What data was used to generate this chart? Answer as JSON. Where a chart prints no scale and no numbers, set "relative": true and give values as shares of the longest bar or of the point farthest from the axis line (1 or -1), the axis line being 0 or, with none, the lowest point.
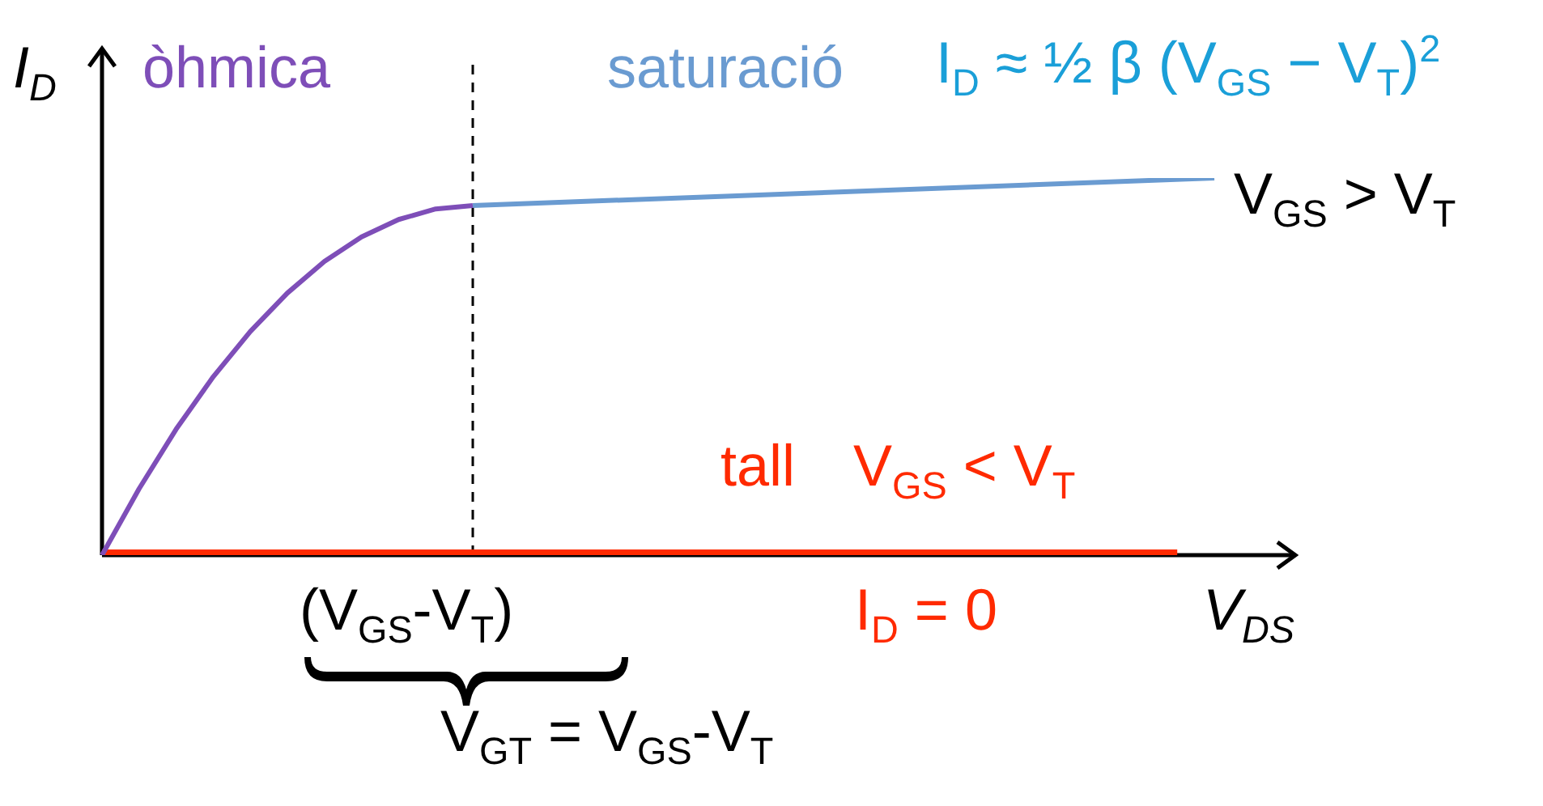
{
  "chart_data": {
    "type": "line",
    "relative": true,
    "xlabel": "V$_{DS}$",
    "ylabel": "I$_{D}$",
    "marker": "none",
    "line_style": "solid",
    "categories": [
      null,
      null,
      null,
      null,
      null,
      null,
      null,
      null,
      null,
      null,
      null,
      null,
      null,
      null,
      null,
      null,
      null,
      null,
      null,
      null,
      null,
      null,
      null,
      null,
      null,
      null,
      null,
      null,
      null,
      null,
      null
    ],
    "series": [
      {
        "name": "òhmica",
        "color": "#7e4eb8",
        "values": [
          0,
          0.176,
          0.334,
          0.473,
          0.593,
          0.695,
          0.779,
          0.844,
          0.89,
          0.918,
          0.927,
          null,
          null,
          null,
          null,
          null,
          null,
          null,
          null,
          null,
          null,
          null,
          null,
          null,
          null,
          null,
          null,
          null,
          null,
          null,
          null
        ]
      },
      {
        "name": "saturació",
        "color": "#6a9bd1",
        "values": [
          null,
          null,
          null,
          null,
          null,
          null,
          null,
          null,
          null,
          null,
          0.927,
          null,
          null,
          null,
          null,
          null,
          null,
          null,
          null,
          null,
          null,
          null,
          null,
          null,
          null,
          null,
          null,
          null,
          null,
          null,
          1
        ]
      },
      {
        "name": "tall",
        "color": "#ff2a00",
        "values": [
          0,
          null,
          null,
          null,
          null,
          null,
          null,
          null,
          null,
          null,
          null,
          null,
          null,
          null,
          null,
          null,
          null,
          null,
          null,
          null,
          null,
          null,
          null,
          null,
          null,
          null,
          null,
          null,
          null,
          0,
          null
        ]
      }
    ],
    "annotations": [
      "I$_{D}$ ≈ ½ β (V$_{GS}$ − V$_{T}$)$^{2}$",
      "V$_{GS}$ > V$_{T}$",
      "V$_{GS}$ < V$_{T}$",
      "I$_{D}$ = 0",
      "(V$_{GS}$-V$_{T}$)",
      "V$_{GT}$ = V$_{GS}$-V$_{T}$"
    ]
  }
}
